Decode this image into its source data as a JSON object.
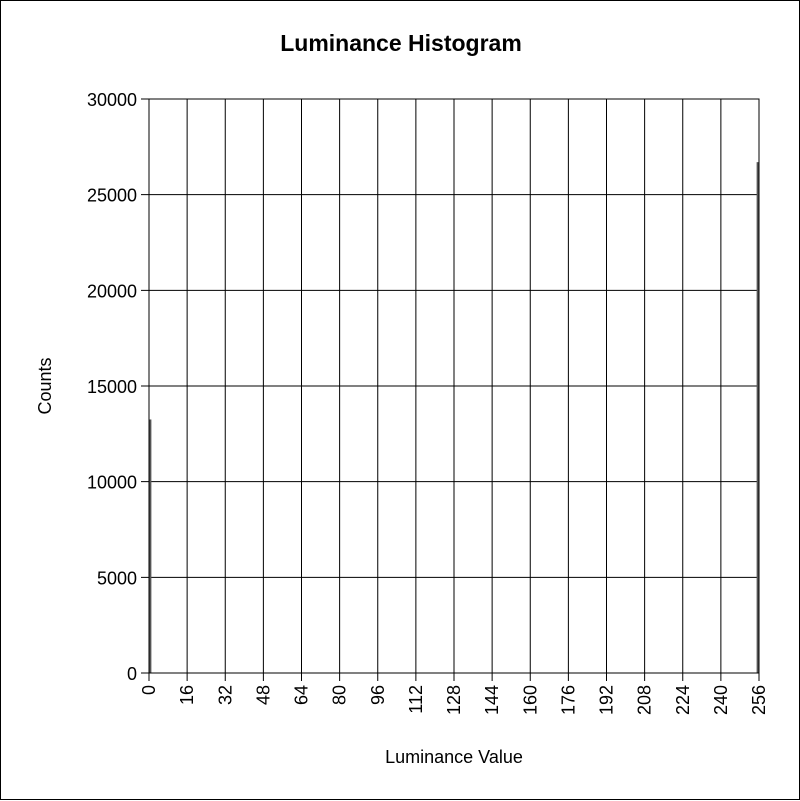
{
  "chart_data": {
    "type": "bar",
    "title": "Luminance Histogram",
    "xlabel": "Luminance Value",
    "ylabel": "Counts",
    "xlim": [
      0,
      256
    ],
    "ylim": [
      0,
      30000
    ],
    "xticks": [
      0,
      16,
      32,
      48,
      64,
      80,
      96,
      112,
      128,
      144,
      160,
      176,
      192,
      208,
      224,
      240,
      256
    ],
    "yticks": [
      0,
      5000,
      10000,
      15000,
      20000,
      25000,
      30000
    ],
    "grid": true,
    "bins": [
      {
        "x": 0,
        "value": 13250
      },
      {
        "x": 255,
        "value": 26700
      }
    ],
    "colors": {
      "bar": "#555555",
      "grid": "#000000",
      "background": "#ffffff"
    }
  }
}
